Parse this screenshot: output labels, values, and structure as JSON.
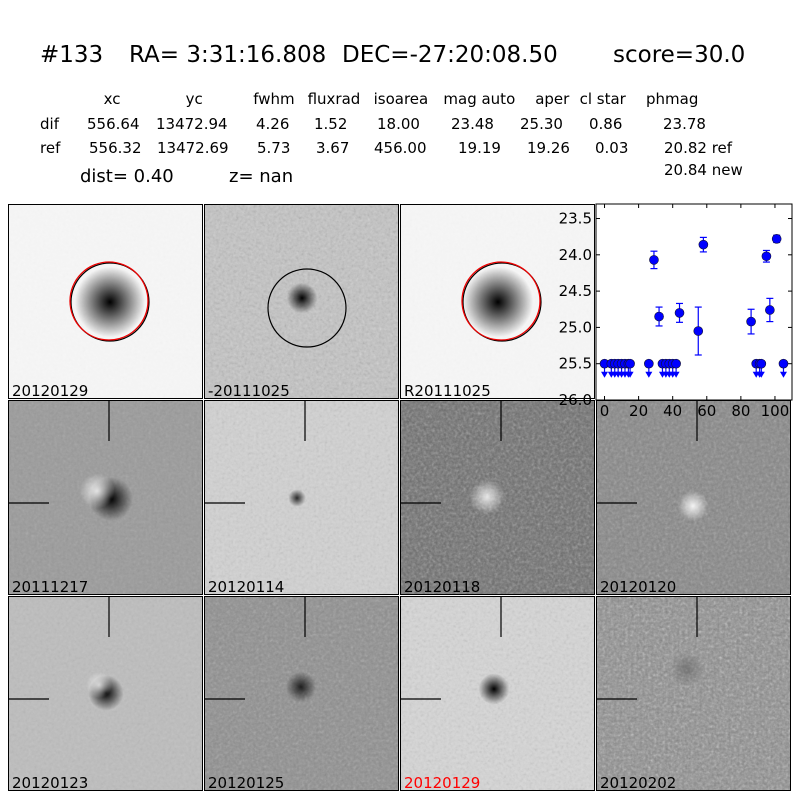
{
  "header": {
    "id": "#133",
    "ra": "RA= 3:31:16.808",
    "dec": "DEC=-27:20:08.50",
    "score": "score=30.0"
  },
  "table": {
    "columns": [
      "xc",
      "yc",
      "fwhm",
      "fluxrad",
      "isoarea",
      "mag auto",
      "aper",
      "cl star",
      "phmag"
    ],
    "rows": [
      {
        "label": "dif",
        "values": [
          "556.64",
          "13472.94",
          "4.26",
          "1.52",
          "18.00",
          "23.48",
          "25.30",
          "0.86",
          "23.78"
        ]
      },
      {
        "label": "ref",
        "values": [
          "556.32",
          "13472.69",
          "5.73",
          "3.67",
          "456.00",
          "19.19",
          "19.26",
          "0.03",
          "20.82 ref"
        ]
      }
    ],
    "extra": "20.84 new",
    "dist": "dist=  0.40",
    "z": "z=   nan"
  },
  "panels": [
    {
      "label": "20120129",
      "bg": "#f6f6f6",
      "noise": 0.05,
      "circle": "both"
    },
    {
      "label": "-20111025",
      "bg": "#c4c4c4",
      "noise": 0.45,
      "circle": "black"
    },
    {
      "label": "R20111025",
      "bg": "#f6f6f6",
      "noise": 0.05,
      "circle": "both"
    },
    {
      "label": "20111217",
      "bg": "#9a9a9a",
      "noise": 0.25,
      "cross": true
    },
    {
      "label": "20120114",
      "bg": "#d2d2d2",
      "noise": 0.3,
      "cross": true
    },
    {
      "label": "20120118",
      "bg": "#6a6a6a",
      "noise": 0.55,
      "cross": true
    },
    {
      "label": "20120120",
      "bg": "#858585",
      "noise": 0.45,
      "cross": true
    },
    {
      "label": "20120123",
      "bg": "#bdbdbd",
      "noise": 0.2,
      "cross": true
    },
    {
      "label": "20120125",
      "bg": "#8e8e8e",
      "noise": 0.4,
      "cross": true
    },
    {
      "label": "20120129",
      "bg": "#d6d6d6",
      "noise": 0.3,
      "cross": true,
      "label_color": "#ff0000"
    },
    {
      "label": "20120202",
      "bg": "#8a8a8a",
      "noise": 0.7,
      "cross": true
    }
  ],
  "chart_data": {
    "type": "scatter",
    "xlim": [
      -5,
      110
    ],
    "ylim": [
      26.0,
      23.3
    ],
    "y_inverted": true,
    "xticks": [
      "0",
      "20",
      "40",
      "60",
      "80",
      "100"
    ],
    "yticks": [
      "23.5",
      "24.0",
      "24.5",
      "25.0",
      "25.5",
      "26.0"
    ],
    "color": "#0000ff",
    "detections": [
      {
        "x": 29,
        "y": 24.07,
        "err": 0.12
      },
      {
        "x": 32,
        "y": 24.85,
        "err": 0.13
      },
      {
        "x": 44,
        "y": 24.8,
        "err": 0.13
      },
      {
        "x": 55,
        "y": 25.05,
        "err": 0.33
      },
      {
        "x": 58,
        "y": 23.86,
        "err": 0.1
      },
      {
        "x": 86,
        "y": 24.92,
        "err": 0.17
      },
      {
        "x": 95,
        "y": 24.02,
        "err": 0.08
      },
      {
        "x": 97,
        "y": 24.76,
        "err": 0.16
      },
      {
        "x": 101,
        "y": 23.78,
        "err": 0.05
      }
    ],
    "upper_limits": {
      "y": 25.5,
      "x": [
        0,
        4,
        6,
        8,
        10,
        12,
        14,
        15,
        26,
        34,
        36,
        38,
        40,
        42,
        89,
        91,
        92,
        105
      ]
    }
  }
}
